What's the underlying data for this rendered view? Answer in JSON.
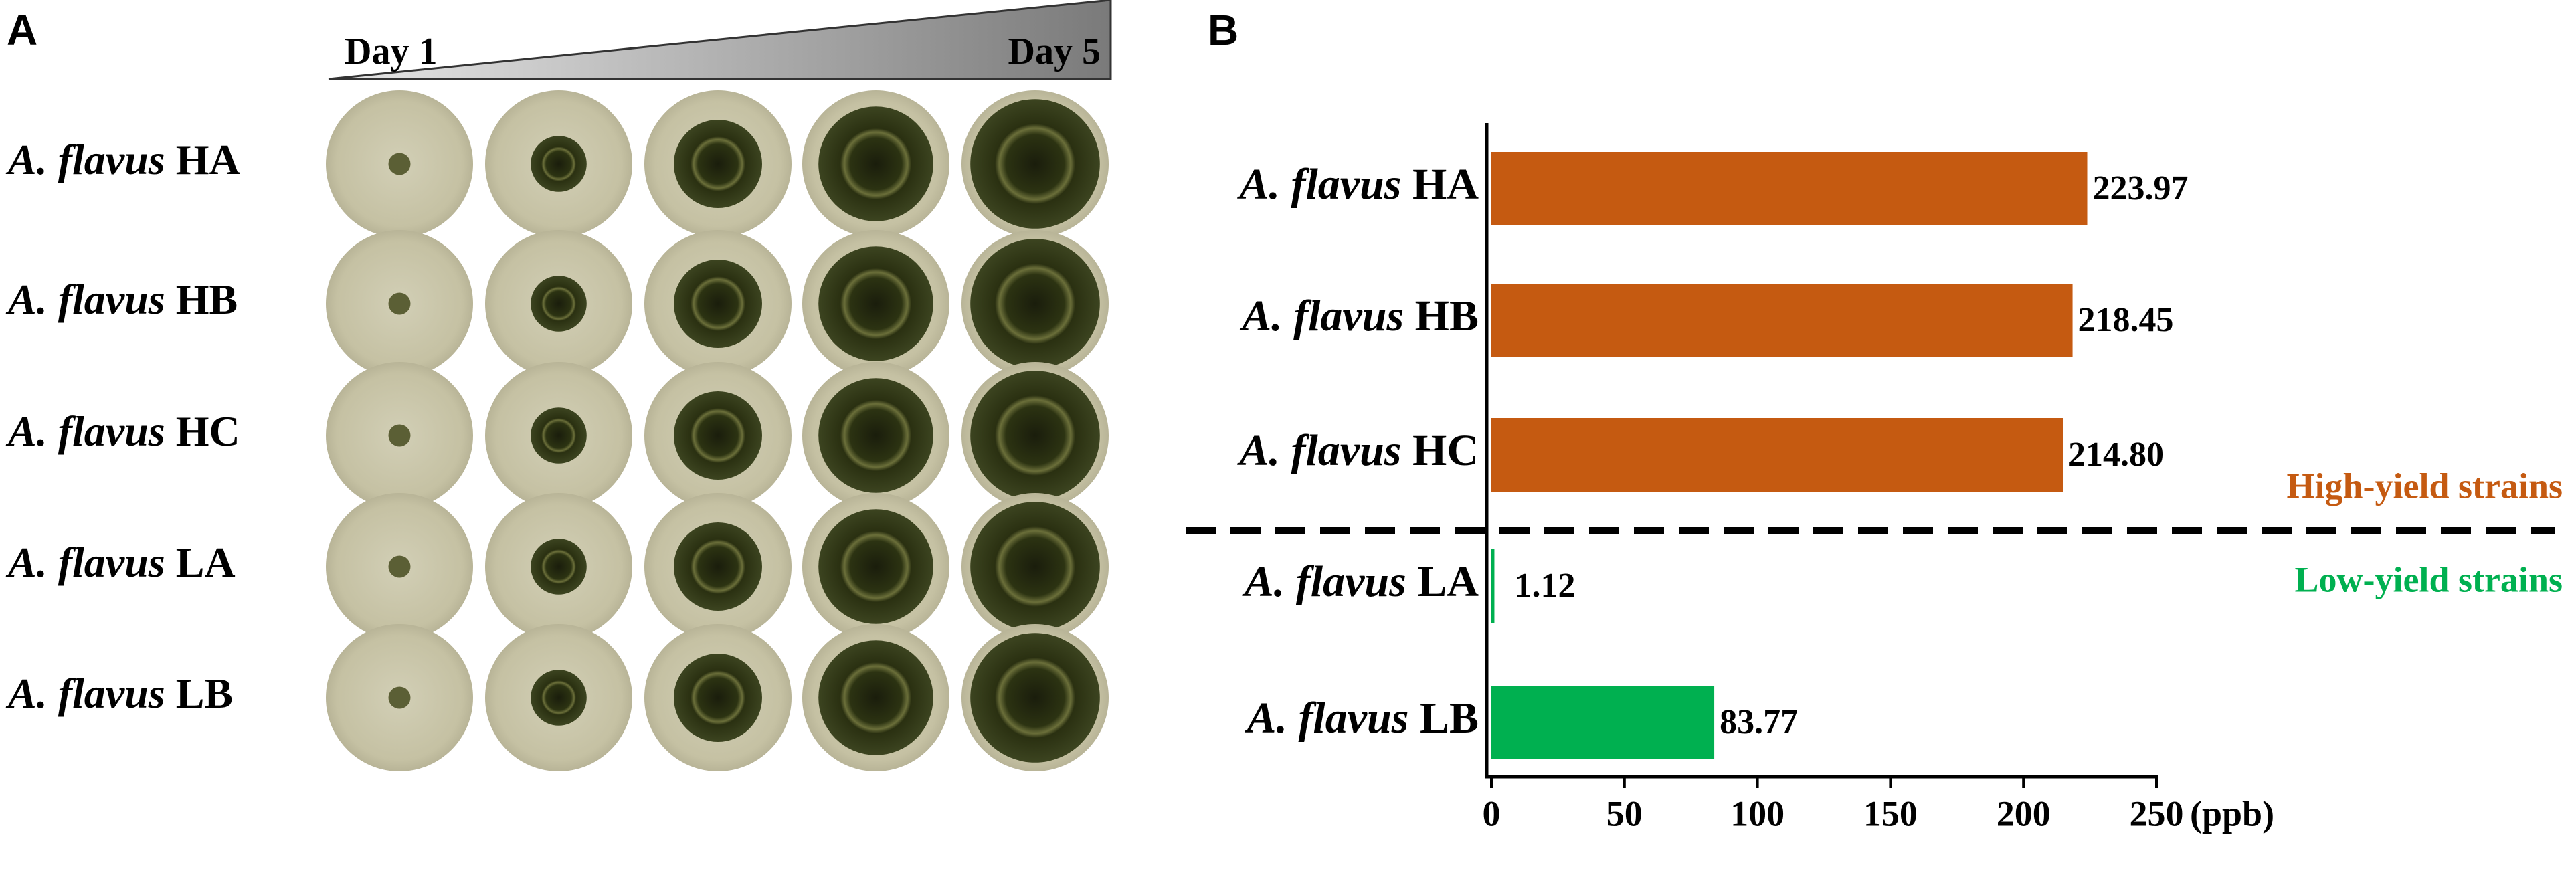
{
  "panel_a": {
    "label": "A",
    "day_start": "Day 1",
    "day_end": "Day 5",
    "rows": [
      "A. flavus HA",
      "A. flavus HB",
      "A. flavus HC",
      "A. flavus LA",
      "A. flavus LB"
    ]
  },
  "chart_data": {
    "type": "barh",
    "panel_label": "B",
    "categories": [
      "A. flavus HA",
      "A. flavus HB",
      "A. flavus HC",
      "A. flavus LA",
      "A. flavus LB"
    ],
    "values": [
      223.97,
      218.45,
      214.8,
      1.12,
      83.77
    ],
    "value_labels": [
      "223.97",
      "218.45",
      "214.80",
      "1.12",
      "83.77"
    ],
    "colors": [
      "#c55a11",
      "#c55a11",
      "#c55a11",
      "#00b050",
      "#00b050"
    ],
    "xlim": [
      0,
      250
    ],
    "xticks": [
      0,
      50,
      100,
      150,
      200,
      250
    ],
    "xlabel": "(ppb)",
    "annotations": [
      {
        "text": "High-yield strains",
        "color": "#c55a11"
      },
      {
        "text": "Low-yield strains",
        "color": "#00b050"
      }
    ]
  }
}
